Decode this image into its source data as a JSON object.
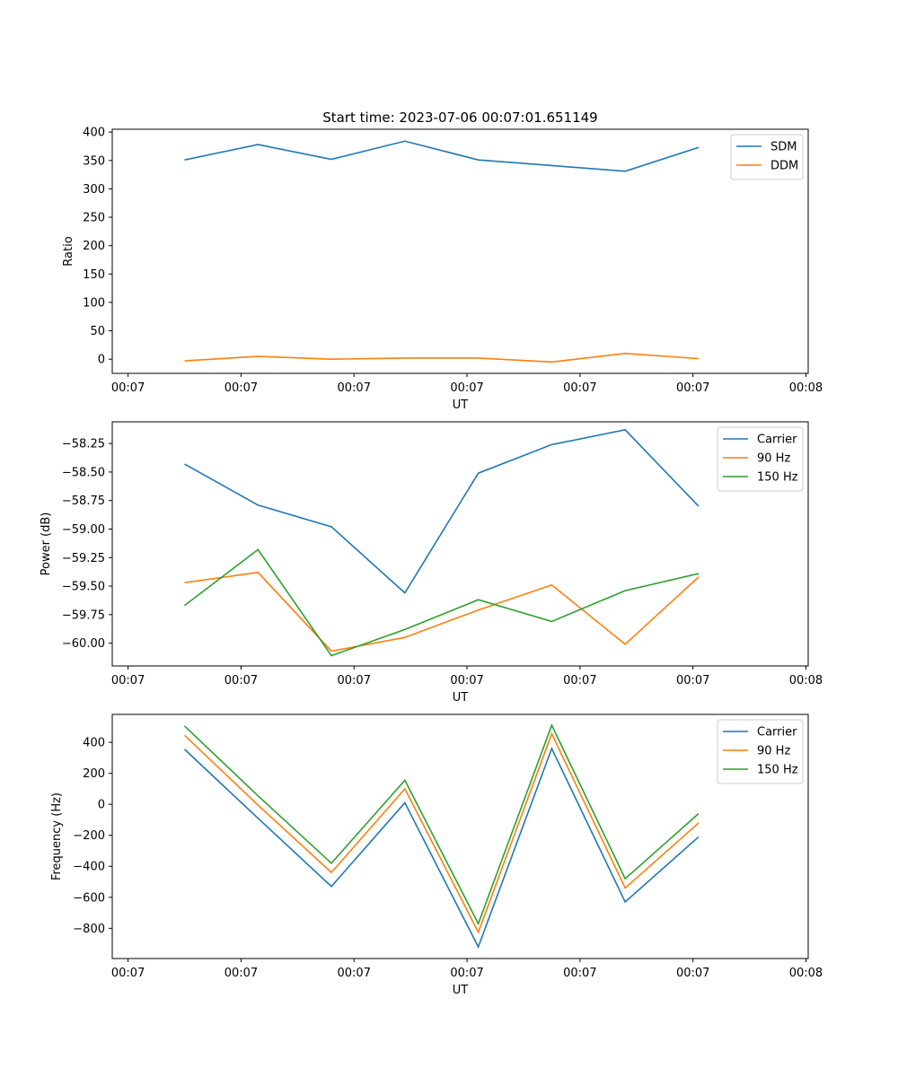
{
  "chart_data": [
    {
      "type": "line",
      "title": "Start time: 2023-07-06 00:07:01.651149",
      "xlabel": "UT",
      "ylabel": "Ratio",
      "xticks": [
        "00:07",
        "00:07",
        "00:07",
        "00:07",
        "00:07",
        "00:07",
        "00:08"
      ],
      "yticks": [
        0,
        50,
        100,
        150,
        200,
        250,
        300,
        350,
        400
      ],
      "ylim": [
        -25,
        405
      ],
      "xlim": [
        -0.14,
        6.02
      ],
      "legend": "upper right",
      "x": [
        0.5,
        1.15,
        1.8,
        2.45,
        3.1,
        3.75,
        4.4,
        5.05
      ],
      "series": [
        {
          "name": "SDM",
          "color": "#1f77b4",
          "values": [
            351,
            378,
            352,
            384,
            351,
            341,
            331,
            373
          ]
        },
        {
          "name": "DDM",
          "color": "#ff7f0e",
          "values": [
            -3,
            5,
            0,
            2,
            2,
            -5,
            10,
            1
          ]
        }
      ]
    },
    {
      "type": "line",
      "title": "",
      "xlabel": "UT",
      "ylabel": "Power (dB)",
      "xticks": [
        "00:07",
        "00:07",
        "00:07",
        "00:07",
        "00:07",
        "00:07",
        "00:08"
      ],
      "yticks": [
        -60.0,
        -59.75,
        -59.5,
        -59.25,
        -59.0,
        -58.75,
        -58.5,
        -58.25
      ],
      "ytick_labels": [
        "−60.00",
        "−59.75",
        "−59.50",
        "−59.25",
        "−59.00",
        "−58.75",
        "−58.50",
        "−58.25"
      ],
      "ylim": [
        -60.2,
        -58.06
      ],
      "xlim": [
        -0.14,
        6.02
      ],
      "legend": "upper right",
      "x": [
        0.5,
        1.15,
        1.8,
        2.45,
        3.1,
        3.75,
        4.4,
        5.05
      ],
      "series": [
        {
          "name": "Carrier",
          "color": "#1f77b4",
          "values": [
            -58.43,
            -58.79,
            -58.98,
            -59.56,
            -58.51,
            -58.26,
            -58.13,
            -58.8
          ]
        },
        {
          "name": "90 Hz",
          "color": "#ff7f0e",
          "values": [
            -59.47,
            -59.38,
            -60.07,
            -59.95,
            -59.71,
            -59.49,
            -60.01,
            -59.42
          ]
        },
        {
          "name": "150 Hz",
          "color": "#2ca02c",
          "values": [
            -59.67,
            -59.18,
            -60.11,
            -59.88,
            -59.62,
            -59.81,
            -59.54,
            -59.39
          ]
        }
      ]
    },
    {
      "type": "line",
      "title": "",
      "xlabel": "UT",
      "ylabel": "Frequency (Hz)",
      "xticks": [
        "00:07",
        "00:07",
        "00:07",
        "00:07",
        "00:07",
        "00:07",
        "00:08"
      ],
      "yticks": [
        -800,
        -600,
        -400,
        -200,
        0,
        200,
        400
      ],
      "ytick_labels": [
        "−800",
        "−600",
        "−400",
        "−200",
        "0",
        "200",
        "400"
      ],
      "ylim": [
        -995,
        580
      ],
      "xlim": [
        -0.14,
        6.02
      ],
      "legend": "upper right",
      "x": [
        0.5,
        1.15,
        1.8,
        2.45,
        3.1,
        3.75,
        4.4,
        5.05
      ],
      "series": [
        {
          "name": "Carrier",
          "color": "#1f77b4",
          "values": [
            355,
            -90,
            -530,
            10,
            -920,
            360,
            -630,
            -210
          ]
        },
        {
          "name": "90 Hz",
          "color": "#ff7f0e",
          "values": [
            445,
            -5,
            -440,
            100,
            -825,
            455,
            -540,
            -120
          ]
        },
        {
          "name": "150 Hz",
          "color": "#2ca02c",
          "values": [
            505,
            55,
            -380,
            155,
            -770,
            510,
            -480,
            -60
          ]
        }
      ]
    }
  ]
}
